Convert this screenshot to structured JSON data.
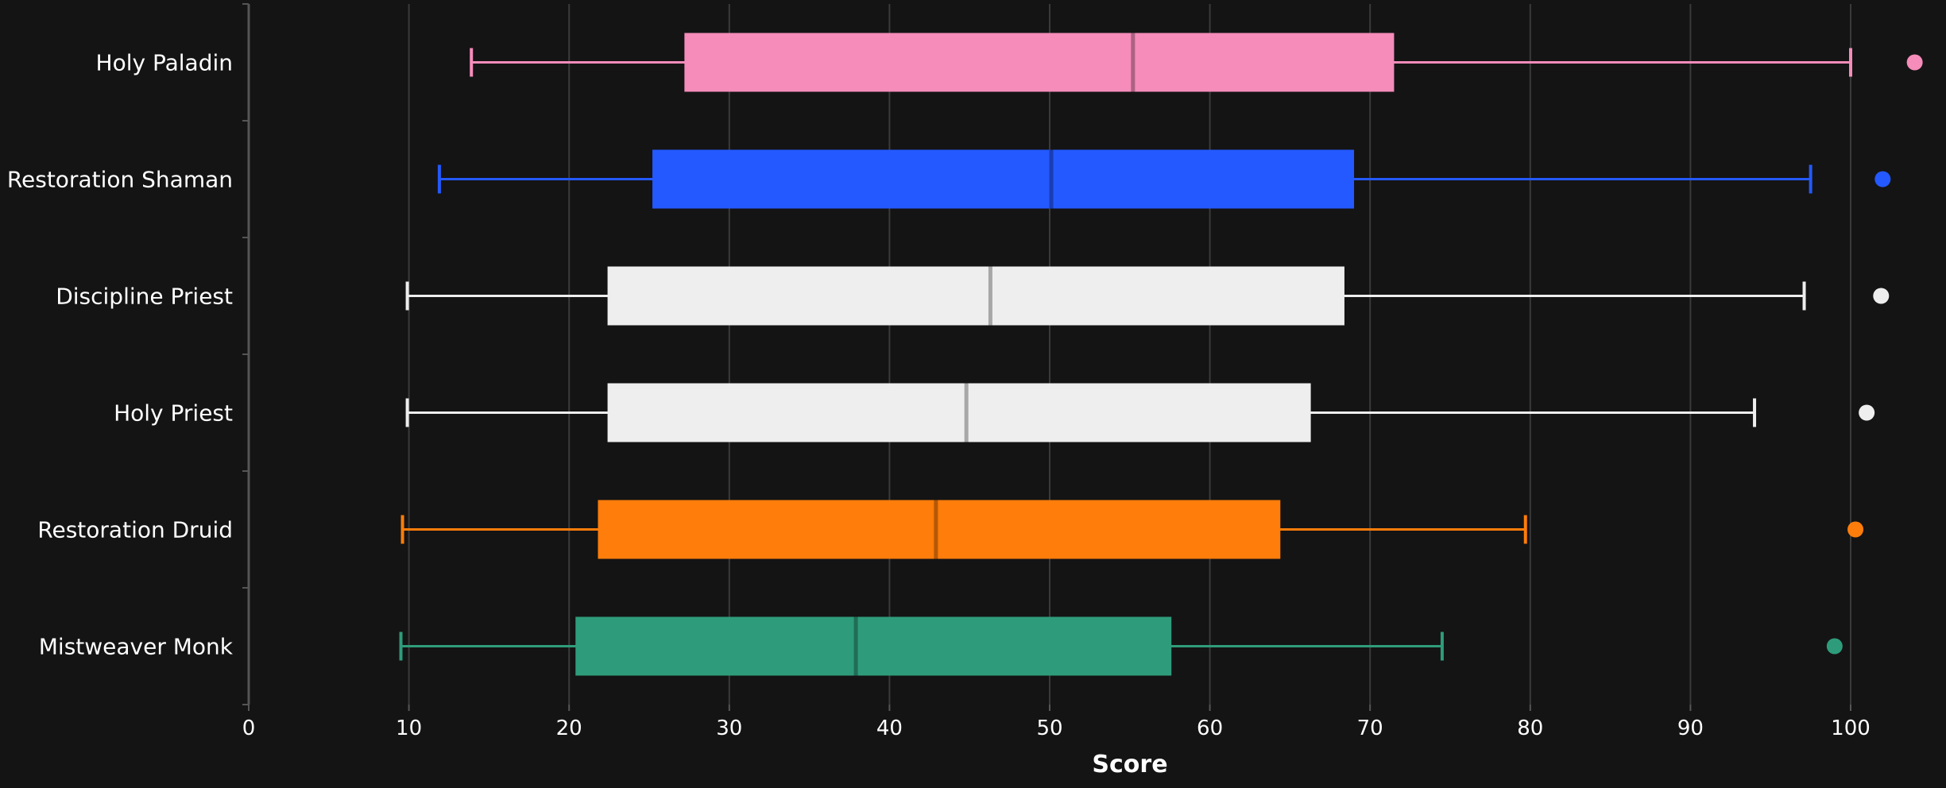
{
  "chart_data": {
    "type": "boxplot",
    "orientation": "horizontal",
    "xlabel": "Score",
    "xlim": [
      0,
      102.5
    ],
    "xticks": [
      0,
      10,
      20,
      30,
      40,
      50,
      60,
      70,
      80,
      90,
      100
    ],
    "grid": true,
    "background": "#141414",
    "series": [
      {
        "name": "Holy Paladin",
        "color": "#F58CBA",
        "whisker_low": 13.9,
        "q1": 27.2,
        "median": 55.2,
        "q3": 71.5,
        "whisker_high": 100.0,
        "outlier": 104.0
      },
      {
        "name": "Restoration Shaman",
        "color": "#2459FF",
        "whisker_low": 11.9,
        "q1": 25.2,
        "median": 50.1,
        "q3": 69.0,
        "whisker_high": 97.5,
        "outlier": 102.0
      },
      {
        "name": "Discipline Priest",
        "color": "#EEEEEE",
        "whisker_low": 9.9,
        "q1": 22.4,
        "median": 46.3,
        "q3": 68.4,
        "whisker_high": 97.1,
        "outlier": 101.9
      },
      {
        "name": "Holy Priest",
        "color": "#EEEEEE",
        "whisker_low": 9.9,
        "q1": 22.4,
        "median": 44.8,
        "q3": 66.3,
        "whisker_high": 94.0,
        "outlier": 101.0
      },
      {
        "name": "Restoration Druid",
        "color": "#FF7D0A",
        "whisker_low": 9.6,
        "q1": 21.8,
        "median": 42.9,
        "q3": 64.4,
        "whisker_high": 79.7,
        "outlier": 100.3
      },
      {
        "name": "Mistweaver Monk",
        "color": "#2E9C7A",
        "whisker_low": 9.5,
        "q1": 20.4,
        "median": 37.9,
        "q3": 57.6,
        "whisker_high": 74.5,
        "outlier": 99.0
      }
    ]
  }
}
